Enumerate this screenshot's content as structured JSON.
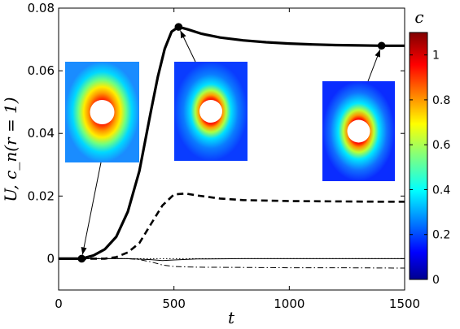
{
  "chart_data": {
    "type": "line",
    "title": "",
    "xlabel": "t",
    "ylabel": "U, c_n(r = 1)",
    "xlim": [
      0,
      1500
    ],
    "ylim": [
      -0.01,
      0.08
    ],
    "x_ticks": [
      "0",
      "500",
      "1000",
      "1500"
    ],
    "y_ticks": [
      "0",
      "0.02",
      "0.04",
      "0.06",
      "0.08"
    ],
    "grid": false,
    "legend": "none",
    "series": [
      {
        "style": "thick-solid",
        "x": [
          0,
          100,
          150,
          200,
          250,
          300,
          350,
          400,
          430,
          460,
          490,
          520,
          560,
          620,
          700,
          800,
          900,
          1000,
          1100,
          1200,
          1300,
          1400,
          1500
        ],
        "y": [
          0.0,
          0.0,
          0.001,
          0.003,
          0.007,
          0.015,
          0.028,
          0.047,
          0.058,
          0.067,
          0.0725,
          0.074,
          0.0732,
          0.0718,
          0.0706,
          0.0697,
          0.0691,
          0.0687,
          0.0684,
          0.0682,
          0.0681,
          0.068,
          0.068
        ]
      },
      {
        "style": "thick-dashed",
        "x": [
          0,
          200,
          250,
          300,
          350,
          400,
          450,
          500,
          550,
          600,
          700,
          800,
          1000,
          1200,
          1400,
          1500
        ],
        "y": [
          0.0,
          0.0,
          0.0005,
          0.002,
          0.005,
          0.011,
          0.017,
          0.0205,
          0.0208,
          0.0202,
          0.0192,
          0.0187,
          0.0184,
          0.0183,
          0.0182,
          0.0182
        ]
      },
      {
        "style": "thin-solid",
        "x": [
          0,
          300,
          400,
          450,
          500,
          600,
          800,
          1000,
          1500
        ],
        "y": [
          0.0,
          0.0,
          -0.0003,
          -0.0006,
          -0.0004,
          -0.0001,
          0.0,
          0.0,
          0.0
        ]
      },
      {
        "style": "thin-dotted",
        "x": [
          0,
          1500
        ],
        "y": [
          0.0,
          0.0
        ]
      },
      {
        "style": "thin-dashdot",
        "x": [
          0,
          300,
          350,
          400,
          450,
          500,
          600,
          800,
          1000,
          1200,
          1500
        ],
        "y": [
          0.0,
          0.0,
          -0.0003,
          -0.001,
          -0.002,
          -0.0025,
          -0.0027,
          -0.0028,
          -0.0029,
          -0.0029,
          -0.003
        ]
      }
    ],
    "markers": [
      {
        "x": 100,
        "y": 0.0
      },
      {
        "x": 520,
        "y": 0.074
      },
      {
        "x": 1400,
        "y": 0.068
      }
    ],
    "colorbar": {
      "label": "c",
      "range": [
        0,
        1.1
      ],
      "ticks": [
        "0",
        "0.2",
        "0.4",
        "0.6",
        "0.8",
        "1"
      ],
      "colormap": "jet"
    },
    "insets": [
      {
        "marker": 0,
        "field": "wide-red-ring"
      },
      {
        "marker": 1,
        "field": "narrow-ring"
      },
      {
        "marker": 2,
        "field": "downstream-ring"
      }
    ]
  }
}
